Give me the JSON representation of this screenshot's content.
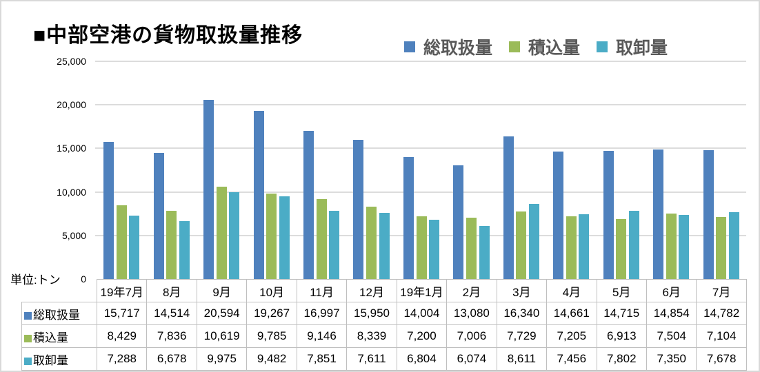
{
  "title": "■中部空港の貨物取扱量推移",
  "unit_label": "単位:トン",
  "y_axis": {
    "tick_labels": [
      "25,000",
      "20,000",
      "15,000",
      "10,000",
      "5,000",
      "0"
    ]
  },
  "chart_data": {
    "type": "bar",
    "title": "中部空港の貨物取扱量推移",
    "categories": [
      "19年7月",
      "8月",
      "9月",
      "10月",
      "11月",
      "12月",
      "19年1月",
      "2月",
      "3月",
      "4月",
      "5月",
      "6月",
      "7月"
    ],
    "series": [
      {
        "name": "総取扱量",
        "key": "total",
        "color": "#4F81BD",
        "values": [
          15717,
          14514,
          20594,
          19267,
          16997,
          15950,
          14004,
          13080,
          16340,
          14661,
          14715,
          14854,
          14782
        ]
      },
      {
        "name": "積込量",
        "key": "loading",
        "color": "#9BBB59",
        "values": [
          8429,
          7836,
          10619,
          9785,
          9146,
          8339,
          7200,
          7006,
          7729,
          7205,
          6913,
          7504,
          7104
        ]
      },
      {
        "name": "取卸量",
        "key": "unloading",
        "color": "#4BACC6",
        "values": [
          7288,
          6678,
          9975,
          9482,
          7851,
          7611,
          6804,
          6074,
          8611,
          7456,
          7802,
          7350,
          7678
        ]
      }
    ],
    "ylabel": "単位:トン",
    "ylim": [
      0,
      25000
    ],
    "ytick_interval": 5000,
    "grid": true,
    "legend_position": "top-right",
    "data_table_shown": true
  },
  "colors": {
    "gridline": "#DCDCDC",
    "table_border": "#BFBFBF",
    "legend_text": "#595959",
    "title_text": "#000000"
  }
}
